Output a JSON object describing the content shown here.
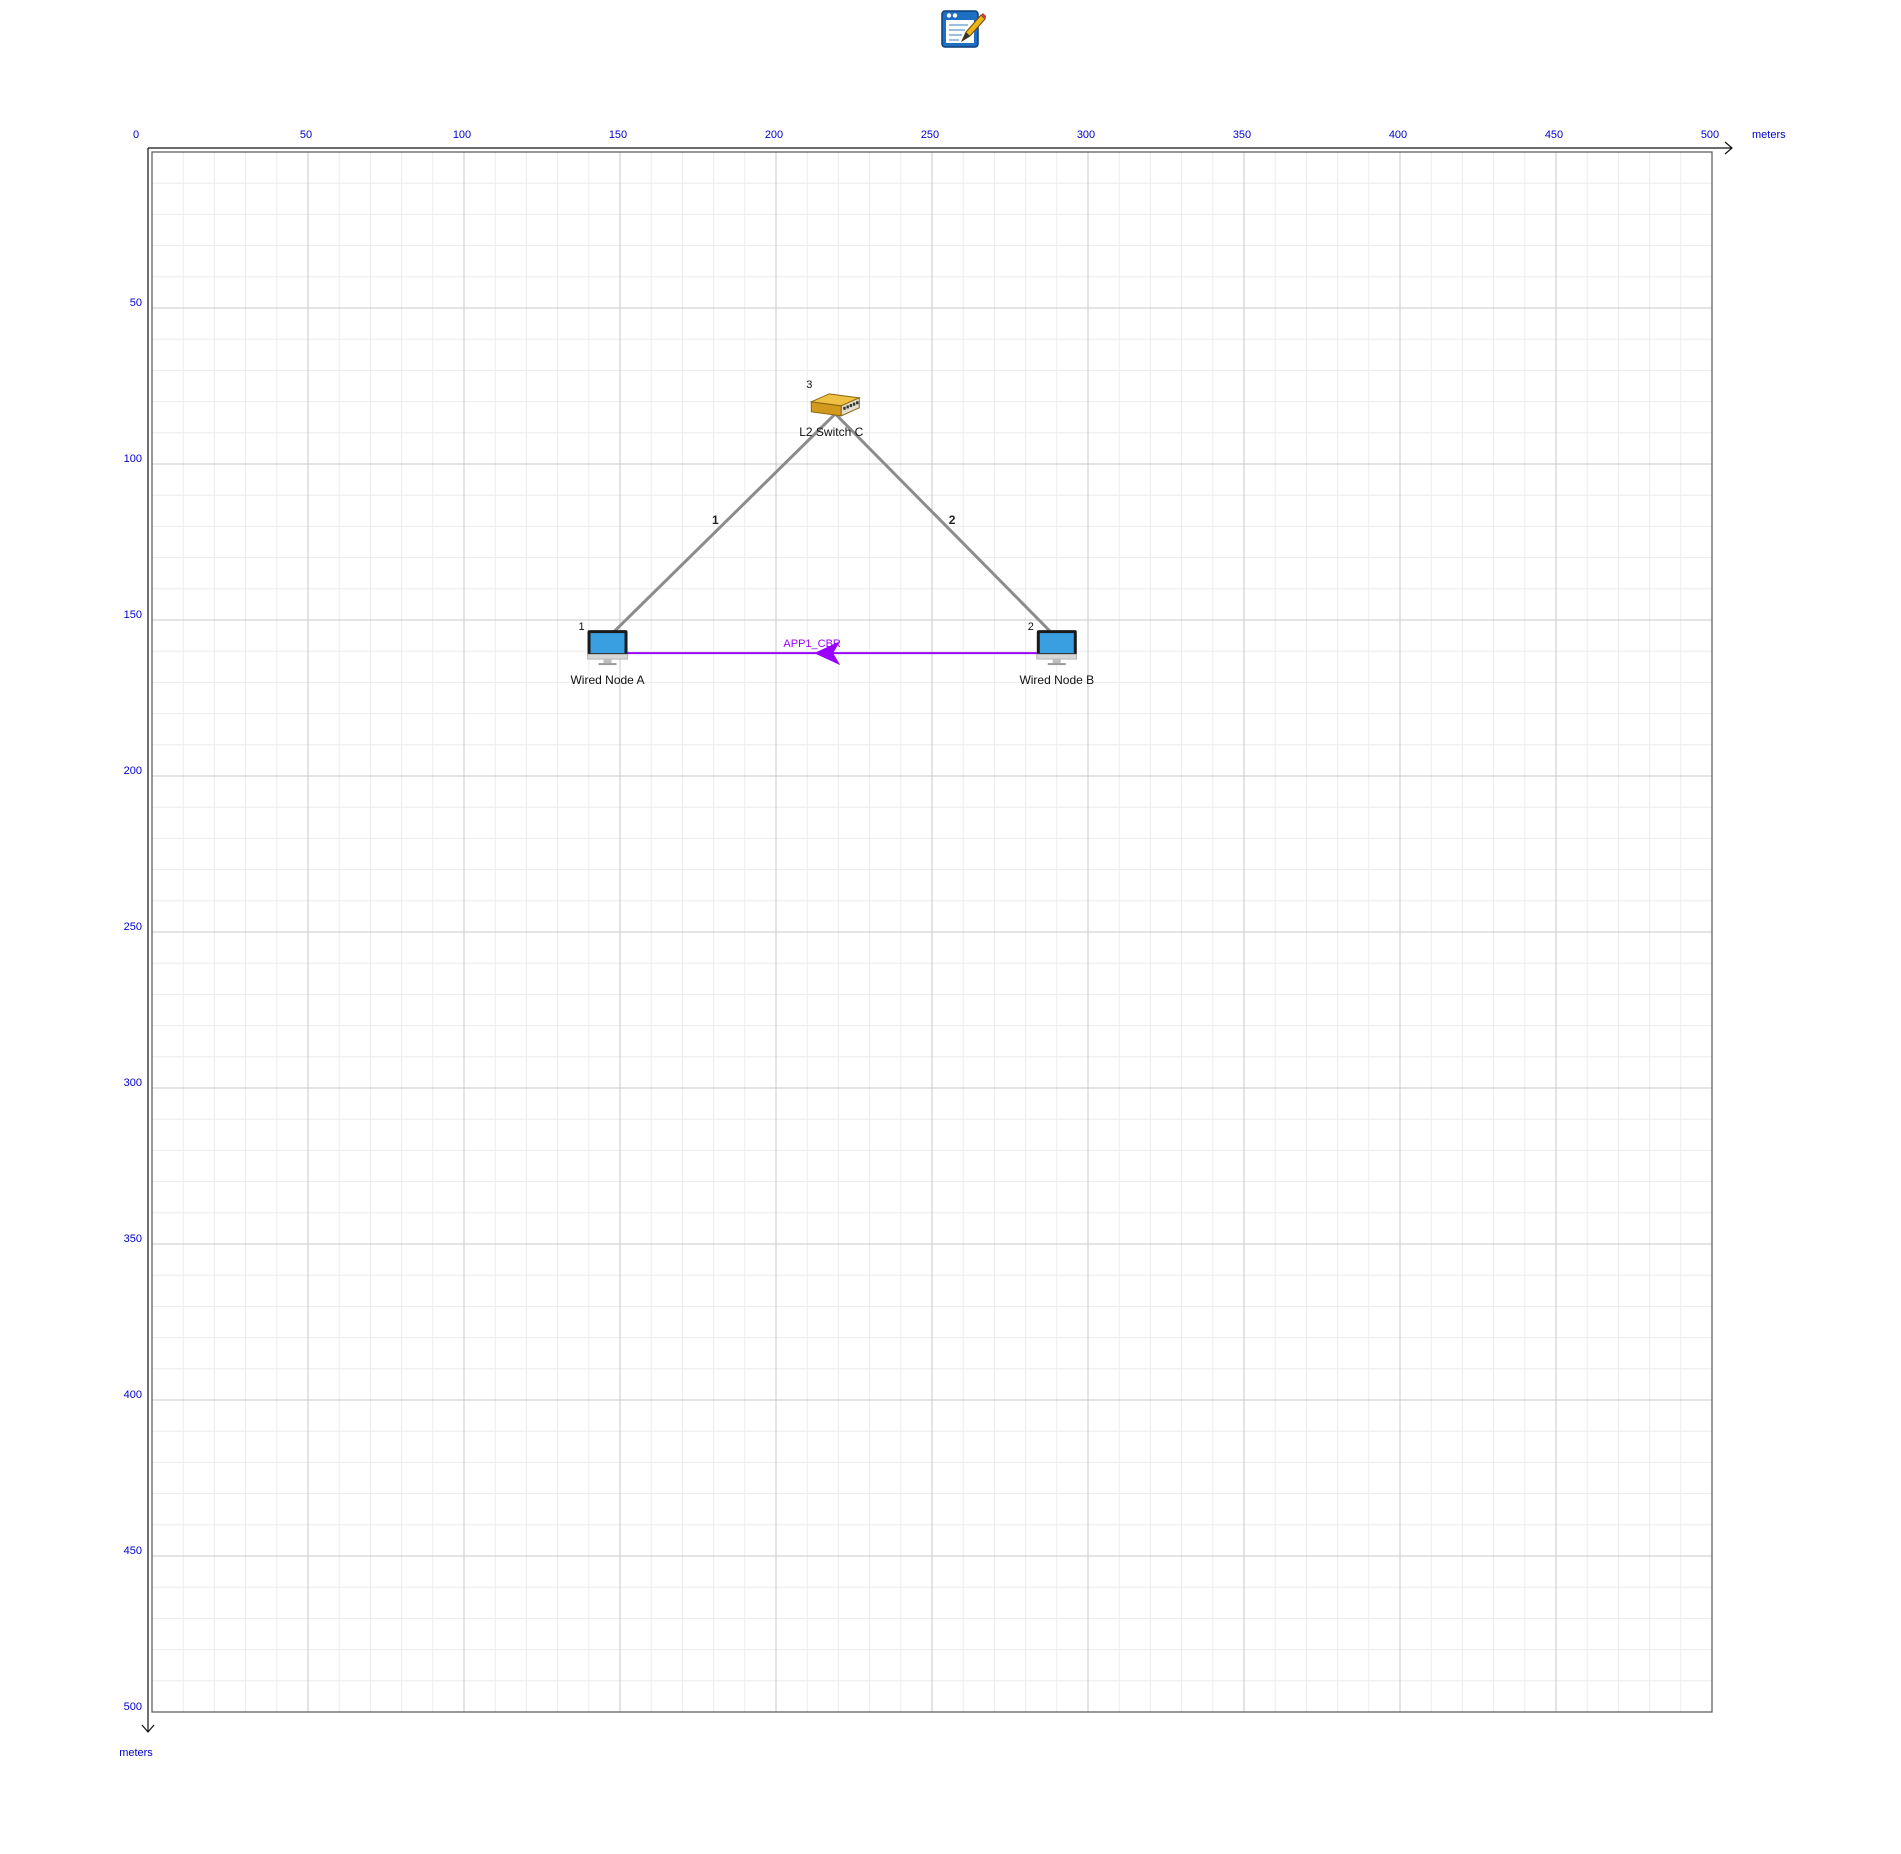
{
  "toolbar": {
    "icon": "edit-properties-icon"
  },
  "grid": {
    "x_axis": {
      "ticks": [
        0,
        50,
        100,
        150,
        200,
        250,
        300,
        350,
        400,
        450,
        500
      ],
      "unit": "meters"
    },
    "y_axis": {
      "ticks": [
        50,
        100,
        150,
        200,
        250,
        300,
        350,
        400,
        450,
        500
      ],
      "unit": "meters"
    },
    "range": [
      0,
      500
    ],
    "major_step": 50,
    "minor_step": 10
  },
  "colors": {
    "axis_text": "#0000cc",
    "link": "#8c8c8c",
    "application": "#9900ff",
    "major_grid": "#c8c8c8",
    "minor_grid": "#ececec",
    "border": "#555555"
  },
  "devices": [
    {
      "id": "1",
      "label": "Wired Node A",
      "type": "wired-node",
      "icon": "computer-monitor-icon",
      "x": 146,
      "y": 159
    },
    {
      "id": "2",
      "label": "Wired Node B",
      "type": "wired-node",
      "icon": "computer-monitor-icon",
      "x": 290,
      "y": 159
    },
    {
      "id": "3",
      "label": "L2 Switch C",
      "type": "l2-switch",
      "icon": "network-switch-icon",
      "x": 219,
      "y": 82
    }
  ],
  "links": [
    {
      "id": "1",
      "from": "1",
      "to": "3"
    },
    {
      "id": "2",
      "from": "2",
      "to": "3"
    }
  ],
  "applications": [
    {
      "name": "APP1_CBR",
      "from": "2",
      "to": "1"
    }
  ]
}
